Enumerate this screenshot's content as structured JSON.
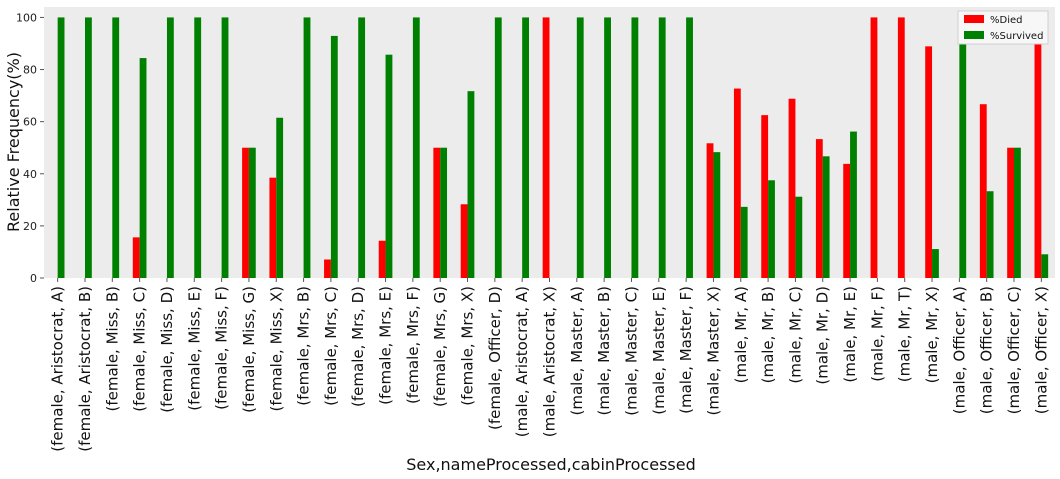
{
  "chart_data": {
    "type": "bar",
    "title": "",
    "xlabel": "Sex,nameProcessed,cabinProcessed",
    "ylabel": "Relative Frequency(%)",
    "ylim": [
      0,
      104
    ],
    "yticks": [
      0,
      20,
      40,
      60,
      80,
      100
    ],
    "grid": false,
    "legend_position": "top-right",
    "categories": [
      "(female,  Aristocrat, A)",
      "(female,  Aristocrat, B)",
      "(female,  Miss, B)",
      "(female,  Miss, C)",
      "(female,  Miss, D)",
      "(female,  Miss, E)",
      "(female,  Miss, F)",
      "(female,  Miss, G)",
      "(female,  Miss, X)",
      "(female,  Mrs, B)",
      "(female,  Mrs, C)",
      "(female,  Mrs, D)",
      "(female,  Mrs, E)",
      "(female,  Mrs, F)",
      "(female,  Mrs, G)",
      "(female,  Mrs, X)",
      "(female,  Officer, D)",
      "(male,  Aristocrat, A)",
      "(male,  Aristocrat, X)",
      "(male,  Master, A)",
      "(male,  Master, B)",
      "(male,  Master, C)",
      "(male,  Master, E)",
      "(male,  Master, F)",
      "(male,  Master, X)",
      "(male,  Mr, A)",
      "(male,  Mr, B)",
      "(male,  Mr, C)",
      "(male,  Mr, D)",
      "(male,  Mr, E)",
      "(male,  Mr, F)",
      "(male,  Mr, T)",
      "(male,  Mr, X)",
      "(male,  Officer, A)",
      "(male,  Officer, B)",
      "(male,  Officer, C)",
      "(male,  Officer, X)"
    ],
    "series": [
      {
        "name": "%Died",
        "color": "#ff0000",
        "values": [
          0,
          0,
          0,
          15.6,
          0,
          0,
          0,
          50,
          38.5,
          0,
          7.1,
          0,
          14.3,
          0,
          50,
          28.3,
          0,
          0,
          100,
          0,
          0,
          0,
          0,
          0,
          51.7,
          72.7,
          62.5,
          68.8,
          53.3,
          43.8,
          100,
          100,
          88.9,
          0,
          66.7,
          50,
          90.9
        ]
      },
      {
        "name": "%Survived",
        "color": "#008000",
        "values": [
          100,
          100,
          100,
          84.4,
          100,
          100,
          100,
          50,
          61.5,
          100,
          92.9,
          100,
          85.7,
          100,
          50,
          71.7,
          100,
          100,
          0,
          100,
          100,
          100,
          100,
          100,
          48.3,
          27.3,
          37.5,
          31.2,
          46.7,
          56.2,
          0,
          0,
          11.1,
          100,
          33.3,
          50,
          9.1
        ]
      }
    ]
  }
}
